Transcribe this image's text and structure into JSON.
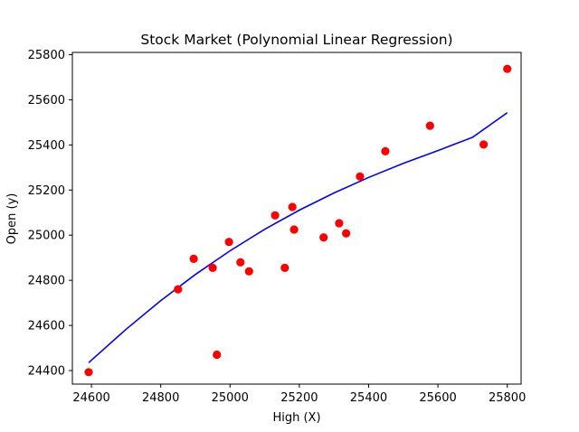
{
  "chart_data": {
    "type": "scatter",
    "title": "Stock Market (Polynomial Linear Regression)",
    "xlabel": "High (X)",
    "ylabel": "Open (y)",
    "xlim": [
      24545,
      25840
    ],
    "ylim": [
      24340,
      25810
    ],
    "xticks": [
      24600,
      24800,
      25000,
      25200,
      25400,
      25600,
      25800
    ],
    "yticks": [
      24400,
      24600,
      24800,
      25000,
      25200,
      25400,
      25600,
      25800
    ],
    "grid": false,
    "legend": "none",
    "colors": {
      "points": "#ff0000",
      "fit": "#0000ff"
    },
    "series": [
      {
        "kind": "scatter",
        "x": [
          24592,
          24850,
          24895,
          24950,
          24962,
          24997,
          25030,
          25055,
          25130,
          25158,
          25180,
          25185,
          25270,
          25315,
          25335,
          25375,
          25448,
          25577,
          25732,
          25800
        ],
        "y": [
          24393,
          24760,
          24895,
          24855,
          24470,
          24970,
          24880,
          24840,
          25088,
          24855,
          25125,
          25025,
          24990,
          25053,
          25008,
          25260,
          25372,
          25485,
          25402,
          25737
        ]
      },
      {
        "kind": "line",
        "x": [
          24592,
          24700,
          24800,
          24900,
          25000,
          25100,
          25200,
          25300,
          25400,
          25500,
          25600,
          25700,
          25800
        ],
        "y": [
          24435,
          24583,
          24710,
          24826,
          24931,
          25026,
          25111,
          25187,
          25256,
          25318,
          25375,
          25434,
          25543
        ]
      }
    ]
  }
}
